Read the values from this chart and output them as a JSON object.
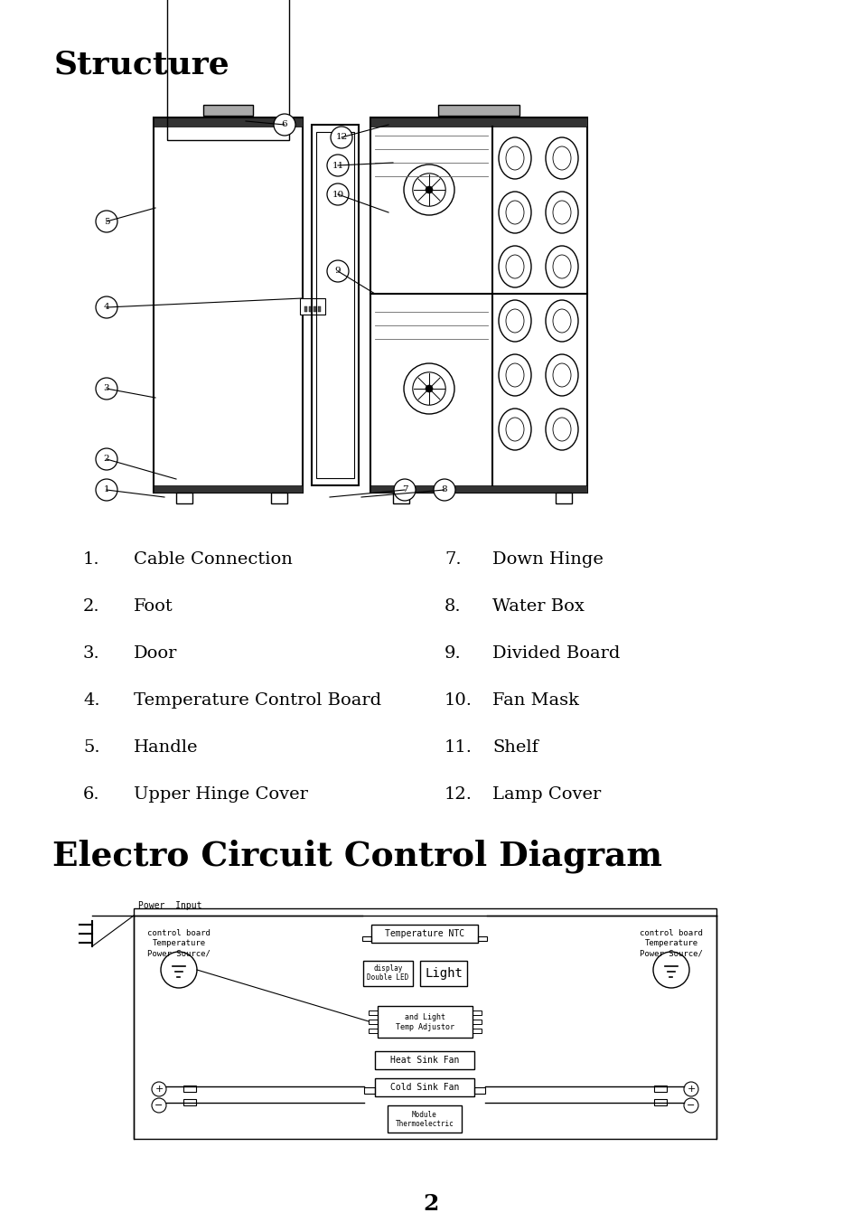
{
  "title_structure": "Structure",
  "title_electro": "Electro Circuit Control Diagram",
  "page_number": "2",
  "items_left": [
    [
      "1.",
      "Cable Connection"
    ],
    [
      "2.",
      "Foot"
    ],
    [
      "3.",
      "Door"
    ],
    [
      "4.",
      "Temperature Control Board"
    ],
    [
      "5.",
      "Handle"
    ],
    [
      "6.",
      "Upper Hinge Cover"
    ]
  ],
  "items_right": [
    [
      "7.",
      "Down Hinge"
    ],
    [
      "8.",
      "Water Box"
    ],
    [
      "9.",
      "Divided Board"
    ],
    [
      "10.",
      "Fan Mask"
    ],
    [
      "11.",
      "Shelf"
    ],
    [
      "12.",
      "Lamp Cover"
    ]
  ],
  "bg_color": "#ffffff",
  "text_color": "#000000",
  "line_color": "#000000"
}
